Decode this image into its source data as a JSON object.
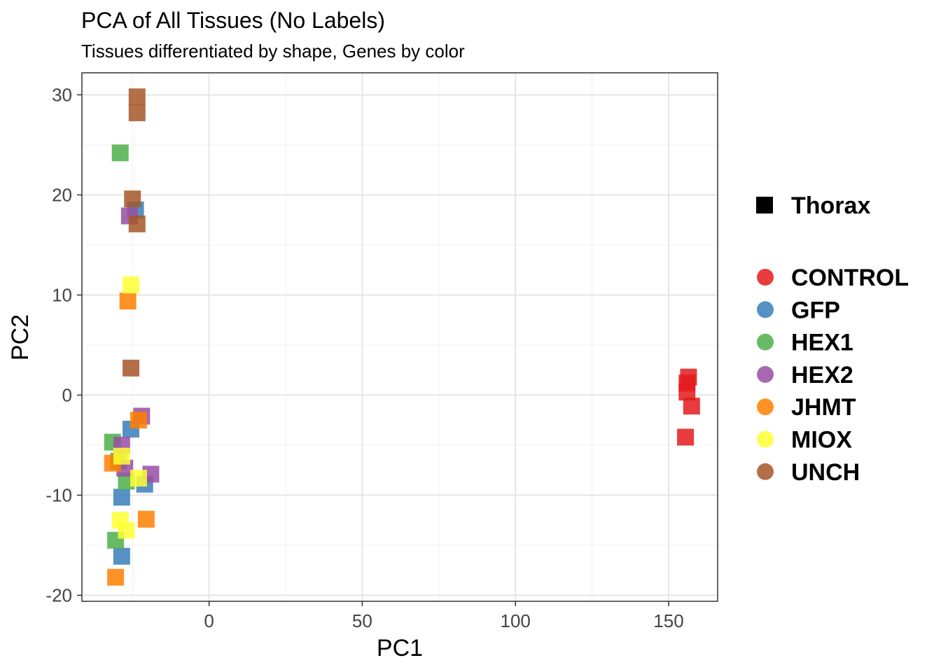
{
  "chart_data": {
    "type": "scatter",
    "title": "PCA of All Tissues (No Labels)",
    "subtitle": "Tissues differentiated by shape, Genes by color",
    "xlabel": "PC1",
    "ylabel": "PC2",
    "xlim": [
      -41.5,
      166
    ],
    "ylim": [
      -20.6,
      32.2
    ],
    "xticks": [
      0,
      50,
      100,
      150
    ],
    "yticks": [
      -20,
      -10,
      0,
      10,
      20,
      30
    ],
    "grid": true,
    "shape_legend": {
      "marker": "square",
      "label": "Thorax"
    },
    "series": [
      {
        "name": "CONTROL",
        "color": "#E41A1C",
        "points": [
          [
            156.5,
            1.8
          ],
          [
            156,
            1.2
          ],
          [
            156,
            0.3
          ],
          [
            157.5,
            -1.1
          ],
          [
            155.5,
            -4.2
          ]
        ]
      },
      {
        "name": "GFP",
        "color": "#377EB8",
        "points": [
          [
            -24,
            18.5
          ],
          [
            -25.5,
            -3.4
          ],
          [
            -28.5,
            -10.2
          ],
          [
            -28.5,
            -16.1
          ],
          [
            -21,
            -8.9
          ]
        ]
      },
      {
        "name": "HEX1",
        "color": "#4DAF4A",
        "points": [
          [
            -29,
            24.2
          ],
          [
            -31.5,
            -4.7
          ],
          [
            -27,
            -8.6
          ],
          [
            -30.5,
            -14.5
          ],
          [
            -29.5,
            -6.6
          ]
        ]
      },
      {
        "name": "HEX2",
        "color": "#984EA3",
        "points": [
          [
            -26,
            17.9
          ],
          [
            -22,
            -2.1
          ],
          [
            -27.5,
            -7.3
          ],
          [
            -19,
            -7.9
          ],
          [
            -28.5,
            -5
          ]
        ]
      },
      {
        "name": "JHMT",
        "color": "#FF7F00",
        "points": [
          [
            -26.5,
            9.4
          ],
          [
            -23,
            -2.5
          ],
          [
            -31.5,
            -6.8
          ],
          [
            -20.5,
            -12.4
          ],
          [
            -30.5,
            -18.2
          ]
        ]
      },
      {
        "name": "MIOX",
        "color": "#FFFF33",
        "points": [
          [
            -25.5,
            11
          ],
          [
            -28.5,
            -6.1
          ],
          [
            -23,
            -8.3
          ],
          [
            -29,
            -12.5
          ],
          [
            -27,
            -13.5
          ]
        ]
      },
      {
        "name": "UNCH",
        "color": "#A65628",
        "points": [
          [
            -23.5,
            29.8
          ],
          [
            -23.5,
            28.2
          ],
          [
            -25,
            19.6
          ],
          [
            -23.5,
            17.1
          ],
          [
            -25.5,
            2.7
          ]
        ]
      }
    ]
  }
}
